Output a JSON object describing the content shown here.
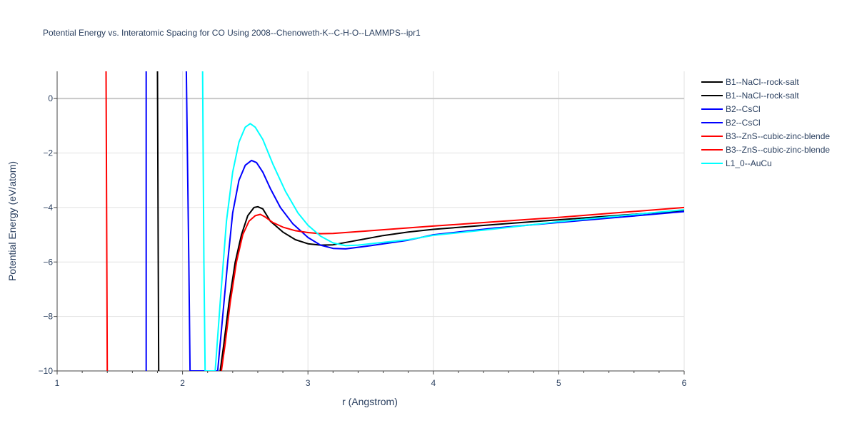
{
  "chart_data": {
    "type": "line",
    "title": "Potential Energy vs. Interatomic Spacing for CO Using 2008--Chenoweth-K--C-H-O--LAMMPS--ipr1",
    "xlabel": "r (Angstrom)",
    "ylabel": "Potential Energy (eV/atom)",
    "xlim": [
      1,
      6
    ],
    "ylim": [
      -10,
      1
    ],
    "x_ticks": [
      1,
      2,
      3,
      4,
      5,
      6
    ],
    "y_ticks": [
      0,
      -2,
      -4,
      -6,
      -8,
      -10
    ],
    "x_tick_labels": [
      "1",
      "2",
      "3",
      "4",
      "5",
      "6"
    ],
    "y_tick_labels": [
      "0",
      "−2",
      "−4",
      "−6",
      "−8",
      "−10"
    ],
    "grid": true,
    "legend_position": "top-right",
    "series": [
      {
        "name": "B1--NaCl--rock-salt",
        "color": "#000000",
        "points": [
          [
            1.8,
            1.0
          ],
          [
            1.81,
            -10.0
          ]
        ]
      },
      {
        "name": "B1--NaCl--rock-salt",
        "color": "#000000",
        "points": [
          [
            2.3,
            -10.0
          ],
          [
            2.33,
            -9.0
          ],
          [
            2.37,
            -7.5
          ],
          [
            2.42,
            -6.0
          ],
          [
            2.47,
            -5.0
          ],
          [
            2.52,
            -4.3
          ],
          [
            2.57,
            -4.0
          ],
          [
            2.6,
            -3.97
          ],
          [
            2.64,
            -4.05
          ],
          [
            2.7,
            -4.5
          ],
          [
            2.8,
            -4.9
          ],
          [
            2.9,
            -5.18
          ],
          [
            3.0,
            -5.33
          ],
          [
            3.1,
            -5.38
          ],
          [
            3.2,
            -5.37
          ],
          [
            3.4,
            -5.2
          ],
          [
            3.6,
            -5.03
          ],
          [
            3.8,
            -4.9
          ],
          [
            4.0,
            -4.8
          ],
          [
            4.5,
            -4.62
          ],
          [
            5.0,
            -4.45
          ],
          [
            5.5,
            -4.28
          ],
          [
            6.0,
            -4.12
          ]
        ]
      },
      {
        "name": "B2--CsCl",
        "color": "#0000ff",
        "points": [
          [
            1.71,
            1.0
          ],
          [
            1.71,
            -10.0
          ]
        ]
      },
      {
        "name": "B2--CsCl",
        "color": "#0000ff",
        "points": [
          [
            2.03,
            1.0
          ],
          [
            2.05,
            -6.0
          ],
          [
            2.06,
            -10.0
          ],
          [
            2.28,
            -10.0
          ],
          [
            2.32,
            -8.0
          ],
          [
            2.36,
            -6.0
          ],
          [
            2.4,
            -4.2
          ],
          [
            2.45,
            -3.0
          ],
          [
            2.5,
            -2.45
          ],
          [
            2.55,
            -2.27
          ],
          [
            2.59,
            -2.35
          ],
          [
            2.64,
            -2.7
          ],
          [
            2.7,
            -3.3
          ],
          [
            2.78,
            -4.0
          ],
          [
            2.88,
            -4.6
          ],
          [
            3.0,
            -5.1
          ],
          [
            3.1,
            -5.38
          ],
          [
            3.2,
            -5.5
          ],
          [
            3.3,
            -5.52
          ],
          [
            3.5,
            -5.4
          ],
          [
            3.8,
            -5.2
          ],
          [
            4.0,
            -5.0
          ],
          [
            4.5,
            -4.75
          ],
          [
            5.0,
            -4.55
          ],
          [
            5.5,
            -4.35
          ],
          [
            6.0,
            -4.15
          ]
        ]
      },
      {
        "name": "B3--ZnS--cubic-zinc-blende",
        "color": "#ff0000",
        "points": [
          [
            1.39,
            1.0
          ],
          [
            1.4,
            -10.0
          ]
        ]
      },
      {
        "name": "B3--ZnS--cubic-zinc-blende",
        "color": "#ff0000",
        "points": [
          [
            2.31,
            -10.0
          ],
          [
            2.34,
            -9.0
          ],
          [
            2.38,
            -7.5
          ],
          [
            2.43,
            -6.0
          ],
          [
            2.48,
            -5.0
          ],
          [
            2.53,
            -4.5
          ],
          [
            2.58,
            -4.3
          ],
          [
            2.62,
            -4.25
          ],
          [
            2.66,
            -4.35
          ],
          [
            2.72,
            -4.55
          ],
          [
            2.8,
            -4.72
          ],
          [
            2.9,
            -4.85
          ],
          [
            3.0,
            -4.92
          ],
          [
            3.1,
            -4.96
          ],
          [
            3.2,
            -4.95
          ],
          [
            3.5,
            -4.85
          ],
          [
            4.0,
            -4.68
          ],
          [
            4.5,
            -4.52
          ],
          [
            5.0,
            -4.36
          ],
          [
            5.5,
            -4.18
          ],
          [
            6.0,
            -4.0
          ]
        ]
      },
      {
        "name": "L1_0--AuCu",
        "color": "#00ffff",
        "points": [
          [
            2.16,
            1.0
          ],
          [
            2.17,
            -6.0
          ],
          [
            2.18,
            -10.0
          ],
          [
            2.26,
            -10.0
          ],
          [
            2.3,
            -7.5
          ],
          [
            2.35,
            -4.5
          ],
          [
            2.4,
            -2.7
          ],
          [
            2.45,
            -1.6
          ],
          [
            2.5,
            -1.05
          ],
          [
            2.54,
            -0.92
          ],
          [
            2.58,
            -1.05
          ],
          [
            2.64,
            -1.5
          ],
          [
            2.72,
            -2.4
          ],
          [
            2.82,
            -3.4
          ],
          [
            2.92,
            -4.2
          ],
          [
            3.0,
            -4.65
          ],
          [
            3.1,
            -5.05
          ],
          [
            3.2,
            -5.3
          ],
          [
            3.3,
            -5.4
          ],
          [
            3.4,
            -5.38
          ],
          [
            3.6,
            -5.28
          ],
          [
            3.8,
            -5.18
          ],
          [
            4.0,
            -5.02
          ],
          [
            4.5,
            -4.78
          ],
          [
            5.0,
            -4.52
          ],
          [
            5.5,
            -4.3
          ],
          [
            6.0,
            -4.08
          ]
        ]
      }
    ]
  }
}
